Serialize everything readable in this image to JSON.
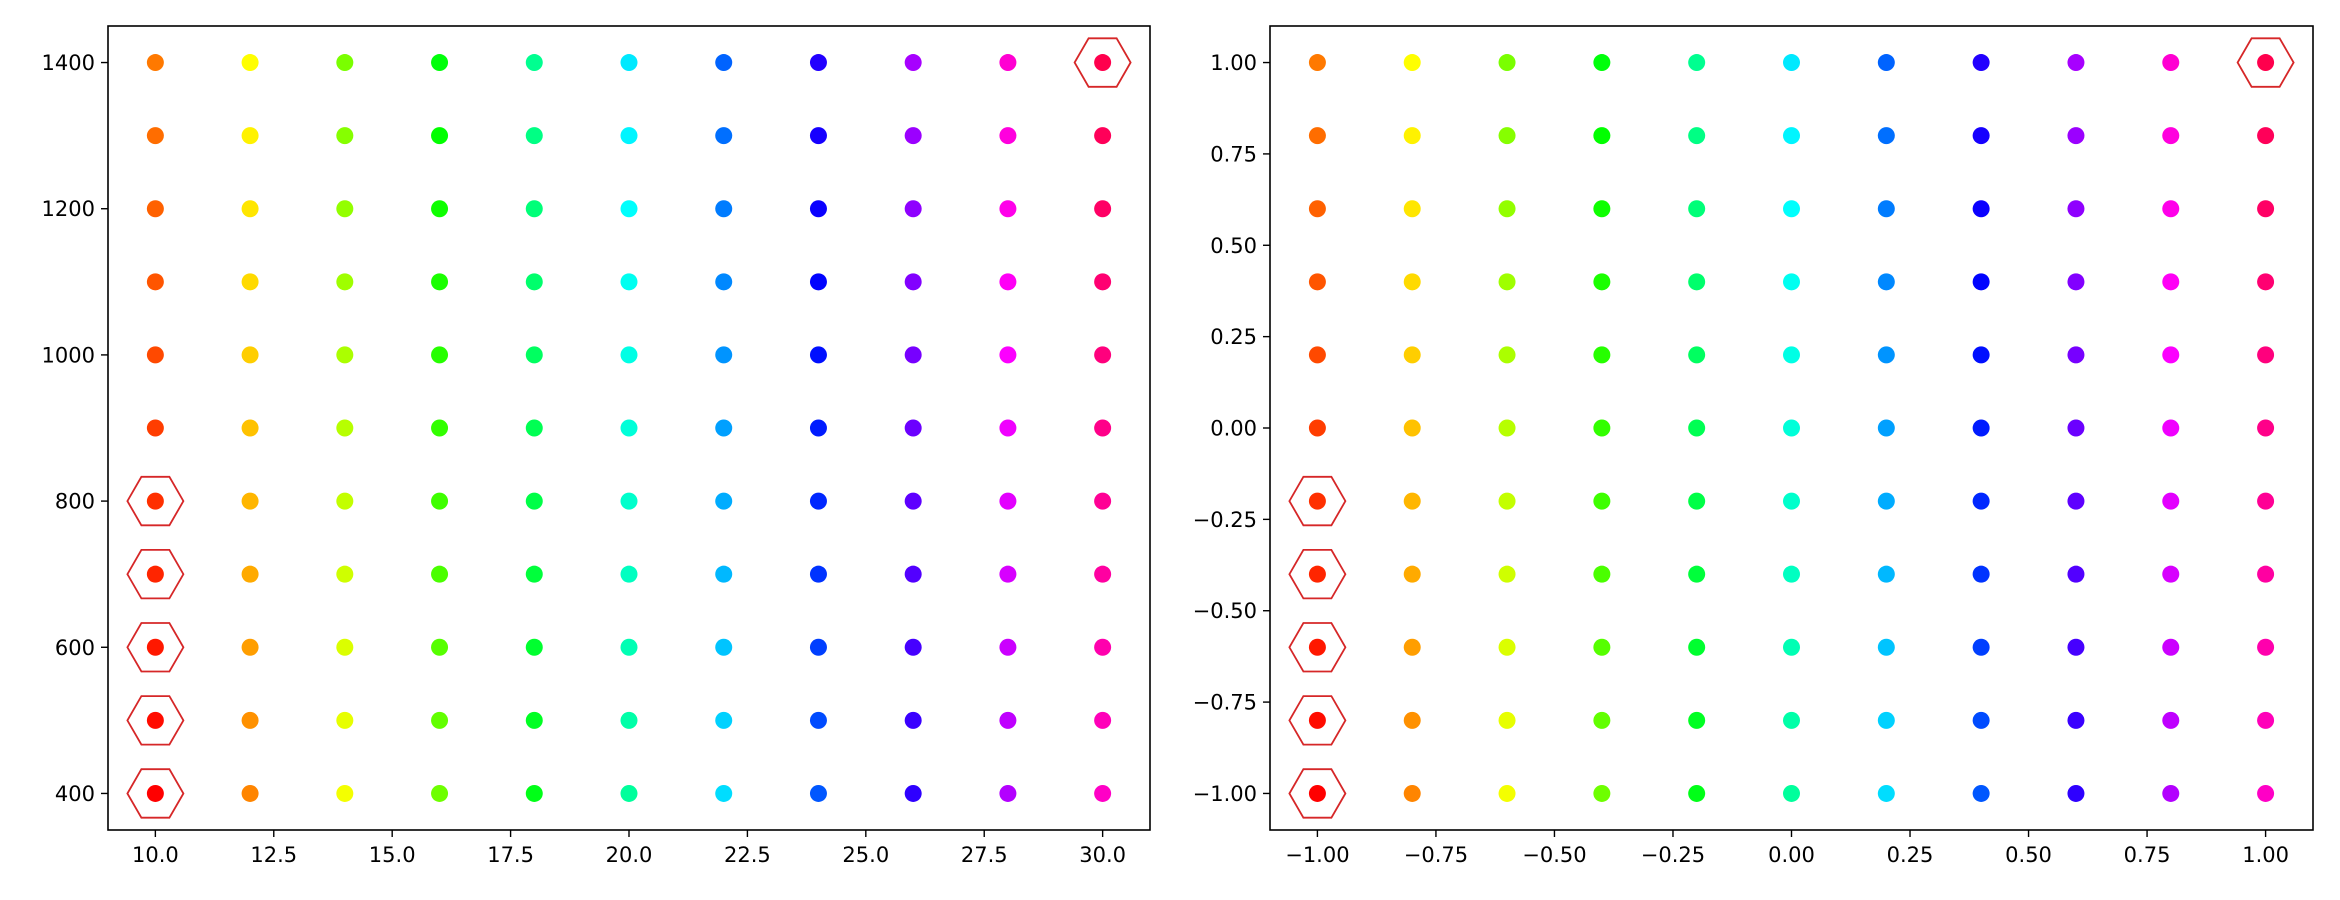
{
  "chart_data": [
    {
      "type": "scatter",
      "title": "",
      "xlabel": "",
      "ylabel": "",
      "xlim": [
        9.0,
        31.0
      ],
      "ylim": [
        350,
        1450
      ],
      "x_values": [
        10,
        12,
        14,
        16,
        18,
        20,
        22,
        24,
        26,
        28,
        30
      ],
      "y_values": [
        400,
        500,
        600,
        700,
        800,
        900,
        1000,
        1100,
        1200,
        1300,
        1400
      ],
      "x_ticks": [
        10.0,
        12.5,
        15.0,
        17.5,
        20.0,
        22.5,
        25.0,
        27.5,
        30.0
      ],
      "x_tick_labels": [
        "10.0",
        "12.5",
        "15.0",
        "17.5",
        "20.0",
        "22.5",
        "25.0",
        "27.5",
        "30.0"
      ],
      "y_ticks": [
        400,
        600,
        800,
        1000,
        1200,
        1400
      ],
      "y_tick_labels": [
        "400",
        "600",
        "800",
        "1000",
        "1200",
        "1400"
      ],
      "highlighted": [
        [
          10,
          400
        ],
        [
          10,
          500
        ],
        [
          10,
          600
        ],
        [
          10,
          700
        ],
        [
          10,
          800
        ],
        [
          30,
          1400
        ]
      ],
      "grid": false,
      "colormap": "hsv"
    },
    {
      "type": "scatter",
      "title": "",
      "xlabel": "",
      "ylabel": "",
      "xlim": [
        -1.1,
        1.1
      ],
      "ylim": [
        -1.1,
        1.1
      ],
      "x_values": [
        -1.0,
        -0.8,
        -0.6,
        -0.4,
        -0.2,
        0.0,
        0.2,
        0.4,
        0.6,
        0.8,
        1.0
      ],
      "y_values": [
        -1.0,
        -0.8,
        -0.6,
        -0.4,
        -0.2,
        0.0,
        0.2,
        0.4,
        0.6,
        0.8,
        1.0
      ],
      "x_ticks": [
        -1.0,
        -0.75,
        -0.5,
        -0.25,
        0.0,
        0.25,
        0.5,
        0.75,
        1.0
      ],
      "x_tick_labels": [
        "−1.00",
        "−0.75",
        "−0.50",
        "−0.25",
        "0.00",
        "0.25",
        "0.50",
        "0.75",
        "1.00"
      ],
      "y_ticks": [
        -1.0,
        -0.75,
        -0.5,
        -0.25,
        0.0,
        0.25,
        0.5,
        0.75,
        1.0
      ],
      "y_tick_labels": [
        "−1.00",
        "−0.75",
        "−0.50",
        "−0.25",
        "0.00",
        "0.25",
        "0.50",
        "0.75",
        "1.00"
      ],
      "highlighted": [
        [
          -1.0,
          -1.0
        ],
        [
          -1.0,
          -0.8
        ],
        [
          -1.0,
          -0.6
        ],
        [
          -1.0,
          -0.4
        ],
        [
          -1.0,
          -0.2
        ],
        [
          1.0,
          1.0
        ]
      ],
      "grid": false,
      "colormap": "hsv"
    }
  ]
}
